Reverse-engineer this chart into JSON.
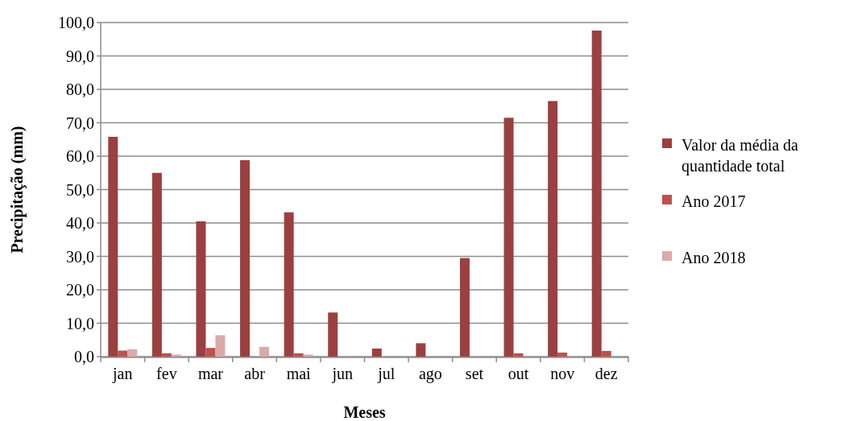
{
  "chart_data": {
    "type": "bar",
    "xlabel": "Meses",
    "ylabel": "Precipitação (mm)",
    "categories": [
      "jan",
      "fev",
      "mar",
      "abr",
      "mai",
      "jun",
      "jul",
      "ago",
      "set",
      "out",
      "nov",
      "dez"
    ],
    "series": [
      {
        "name": "Valor da média da quantidade total",
        "color": "#9c3f3f",
        "values": [
          65.8,
          55.0,
          40.5,
          58.8,
          43.2,
          13.2,
          2.4,
          4.0,
          29.5,
          71.5,
          76.5,
          97.6
        ]
      },
      {
        "name": "Ano 2017",
        "color": "#c0504d",
        "values": [
          1.8,
          1.0,
          2.6,
          0,
          1.0,
          0,
          0,
          null,
          0,
          1.0,
          1.2,
          1.7
        ]
      },
      {
        "name": "Ano 2018",
        "color": "#dba9a8",
        "values": [
          2.2,
          0.6,
          6.4,
          2.9,
          0.6,
          null,
          0,
          0,
          0,
          0,
          0,
          0
        ]
      }
    ],
    "ylim": [
      0,
      100
    ],
    "yticks": [
      {
        "value": 0,
        "label": "0,0"
      },
      {
        "value": 10,
        "label": "10,0"
      },
      {
        "value": 20,
        "label": "20,0"
      },
      {
        "value": 30,
        "label": "30,0"
      },
      {
        "value": 40,
        "label": "40,0"
      },
      {
        "value": 50,
        "label": "50,0"
      },
      {
        "value": 60,
        "label": "60,0"
      },
      {
        "value": 70,
        "label": "70,0"
      },
      {
        "value": 80,
        "label": "80,0"
      },
      {
        "value": 90,
        "label": "90,0"
      },
      {
        "value": 100,
        "label": "100,0"
      }
    ],
    "grid": "y",
    "legend": "right"
  }
}
